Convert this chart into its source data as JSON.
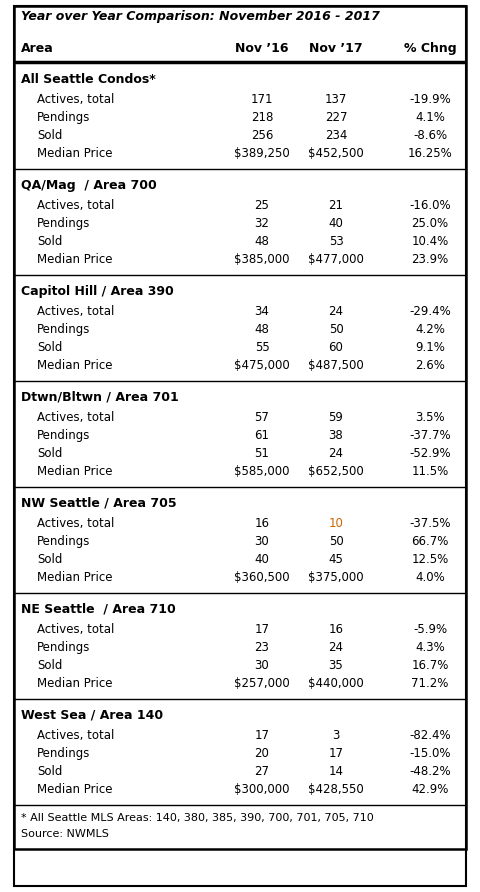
{
  "title": "Year over Year Comparison: November 2016 - 2017",
  "headers": [
    "Area",
    "Nov ’16",
    "Nov ’17",
    "% Chng"
  ],
  "sections": [
    {
      "name": "All Seattle Condos*",
      "rows": [
        [
          "Actives, total",
          "171",
          "137",
          "-19.9%"
        ],
        [
          "Pendings",
          "218",
          "227",
          "4.1%"
        ],
        [
          "Sold",
          "256",
          "234",
          "-8.6%"
        ],
        [
          "Median Price",
          "$389,250",
          "$452,500",
          "16.25%"
        ]
      ]
    },
    {
      "name": "QA/Mag  / Area 700",
      "rows": [
        [
          "Actives, total",
          "25",
          "21",
          "-16.0%"
        ],
        [
          "Pendings",
          "32",
          "40",
          "25.0%"
        ],
        [
          "Sold",
          "48",
          "53",
          "10.4%"
        ],
        [
          "Median Price",
          "$385,000",
          "$477,000",
          "23.9%"
        ]
      ]
    },
    {
      "name": "Capitol Hill / Area 390",
      "rows": [
        [
          "Actives, total",
          "34",
          "24",
          "-29.4%"
        ],
        [
          "Pendings",
          "48",
          "50",
          "4.2%"
        ],
        [
          "Sold",
          "55",
          "60",
          "9.1%"
        ],
        [
          "Median Price",
          "$475,000",
          "$487,500",
          "2.6%"
        ]
      ]
    },
    {
      "name": "Dtwn/Bltwn / Area 701",
      "rows": [
        [
          "Actives, total",
          "57",
          "59",
          "3.5%"
        ],
        [
          "Pendings",
          "61",
          "38",
          "-37.7%"
        ],
        [
          "Sold",
          "51",
          "24",
          "-52.9%"
        ],
        [
          "Median Price",
          "$585,000",
          "$652,500",
          "11.5%"
        ]
      ]
    },
    {
      "name": "NW Seattle / Area 705",
      "rows": [
        [
          "Actives, total",
          "16",
          "10",
          "-37.5%"
        ],
        [
          "Pendings",
          "30",
          "50",
          "66.7%"
        ],
        [
          "Sold",
          "40",
          "45",
          "12.5%"
        ],
        [
          "Median Price",
          "$360,500",
          "$375,000",
          "4.0%"
        ]
      ]
    },
    {
      "name": "NE Seattle  / Area 710",
      "rows": [
        [
          "Actives, total",
          "17",
          "16",
          "-5.9%"
        ],
        [
          "Pendings",
          "23",
          "24",
          "4.3%"
        ],
        [
          "Sold",
          "30",
          "35",
          "16.7%"
        ],
        [
          "Median Price",
          "$257,000",
          "$440,000",
          "71.2%"
        ]
      ]
    },
    {
      "name": "West Sea / Area 140",
      "rows": [
        [
          "Actives, total",
          "17",
          "3",
          "-82.4%"
        ],
        [
          "Pendings",
          "20",
          "17",
          "-15.0%"
        ],
        [
          "Sold",
          "27",
          "14",
          "-48.2%"
        ],
        [
          "Median Price",
          "$300,000",
          "$428,550",
          "42.9%"
        ]
      ]
    }
  ],
  "footnote1": "* All Seattle MLS Areas: 140, 380, 385, 390, 700, 701, 705, 710",
  "footnote2": "Source: NWMLS",
  "special_color_section": 4,
  "special_color_row": 0,
  "special_color_col": 2,
  "special_color": "#cc6600",
  "bg_color": "#ffffff",
  "title_fontsize": 9.0,
  "header_fontsize": 9.0,
  "section_fontsize": 9.0,
  "row_fontsize": 8.5,
  "footnote_fontsize": 8.0
}
